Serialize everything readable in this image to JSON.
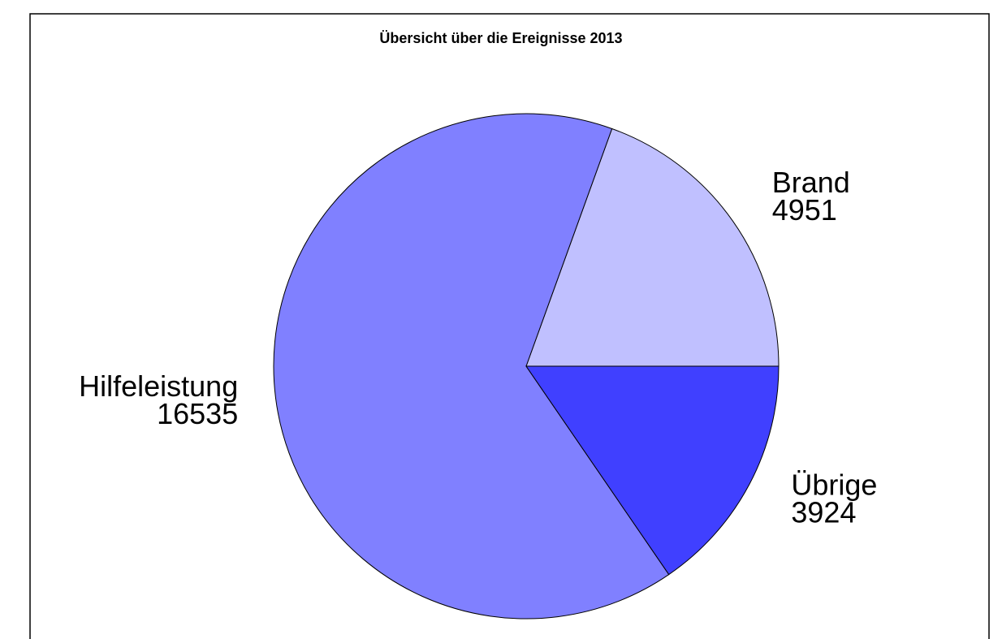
{
  "chart_data": {
    "type": "pie",
    "title": "Übersicht über die Ereignisse 2013",
    "categories": [
      "Brand",
      "Hilfeleistung",
      "Übrige"
    ],
    "values": [
      4951,
      16535,
      3924
    ],
    "colors": [
      "#c0c0ff",
      "#8080ff",
      "#4040ff"
    ]
  }
}
